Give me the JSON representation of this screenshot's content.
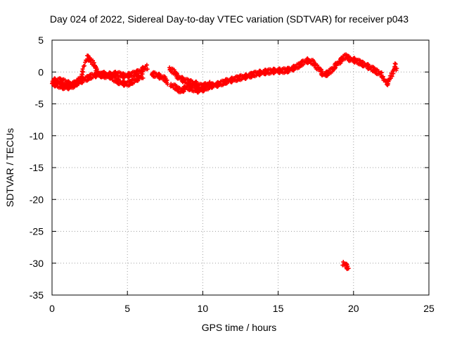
{
  "chart_data": {
    "type": "scatter",
    "title": "Day 024 of 2022, Sidereal Day-to-day VTEC variation (SDTVAR) for receiver p043",
    "xlabel": "GPS time / hours",
    "ylabel": "SDTVAR / TECUs",
    "xlim": [
      0,
      25
    ],
    "ylim": [
      -35,
      5
    ],
    "xticks": [
      0,
      5,
      10,
      15,
      20,
      25
    ],
    "yticks": [
      5,
      0,
      -5,
      -10,
      -15,
      -20,
      -25,
      -30,
      -35
    ],
    "grid": true,
    "series": [
      {
        "name": "SDTVAR",
        "color": "#ff0000",
        "marker": "plus",
        "segments": [
          [
            [
              0.0,
              -1.8
            ],
            [
              0.3,
              -2.0
            ],
            [
              0.6,
              -2.2
            ],
            [
              0.9,
              -2.4
            ],
            [
              1.2,
              -2.3
            ],
            [
              1.5,
              -2.0
            ],
            [
              1.8,
              -1.6
            ],
            [
              2.1,
              -1.2
            ],
            [
              2.4,
              -0.9
            ],
            [
              2.7,
              -0.6
            ],
            [
              3.0,
              -0.4
            ],
            [
              3.3,
              -0.5
            ],
            [
              3.6,
              -0.6
            ],
            [
              3.9,
              -0.4
            ],
            [
              4.2,
              -0.3
            ],
            [
              4.5,
              -0.4
            ],
            [
              4.8,
              -0.6
            ],
            [
              5.1,
              -0.5
            ],
            [
              5.4,
              -0.3
            ],
            [
              5.7,
              -0.1
            ],
            [
              6.0,
              0.4
            ],
            [
              6.3,
              0.8
            ]
          ],
          [
            [
              0.0,
              -1.4
            ],
            [
              0.4,
              -1.3
            ],
            [
              0.8,
              -1.5
            ],
            [
              1.2,
              -1.9
            ],
            [
              1.6,
              -1.8
            ],
            [
              1.9,
              -0.9
            ],
            [
              2.1,
              0.3
            ],
            [
              2.2,
              1.5
            ],
            [
              2.3,
              2.3
            ],
            [
              2.6,
              1.8
            ],
            [
              2.9,
              0.6
            ],
            [
              3.1,
              -0.2
            ]
          ],
          [
            [
              3.3,
              -0.2
            ],
            [
              3.7,
              -0.5
            ],
            [
              4.1,
              -1.1
            ],
            [
              4.5,
              -1.6
            ],
            [
              4.9,
              -1.9
            ],
            [
              5.3,
              -1.6
            ],
            [
              5.7,
              -1.0
            ],
            [
              6.0,
              -0.6
            ]
          ],
          [
            [
              6.6,
              -0.3
            ],
            [
              7.0,
              -0.5
            ],
            [
              7.4,
              -1.0
            ],
            [
              7.7,
              -1.6
            ]
          ],
          [
            [
              7.8,
              0.5
            ],
            [
              8.1,
              0.0
            ],
            [
              8.4,
              -0.8
            ],
            [
              8.7,
              -1.3
            ],
            [
              9.0,
              -1.5
            ],
            [
              9.3,
              -1.7
            ],
            [
              9.6,
              -1.9
            ],
            [
              9.9,
              -2.3
            ],
            [
              10.2,
              -2.1
            ],
            [
              10.5,
              -1.9
            ]
          ],
          [
            [
              7.9,
              -2.0
            ],
            [
              8.3,
              -2.6
            ],
            [
              8.6,
              -3.0
            ],
            [
              8.9,
              -2.4
            ],
            [
              9.3,
              -2.6
            ],
            [
              9.7,
              -2.9
            ],
            [
              10.1,
              -2.6
            ],
            [
              10.5,
              -2.2
            ],
            [
              10.9,
              -2.0
            ],
            [
              11.3,
              -1.7
            ],
            [
              11.7,
              -1.4
            ],
            [
              12.1,
              -1.1
            ],
            [
              12.5,
              -0.9
            ],
            [
              12.9,
              -0.7
            ],
            [
              13.3,
              -0.4
            ],
            [
              13.7,
              -0.2
            ],
            [
              14.1,
              0.0
            ],
            [
              14.5,
              0.1
            ],
            [
              14.9,
              0.2
            ],
            [
              15.3,
              0.2
            ],
            [
              15.7,
              0.3
            ],
            [
              16.1,
              0.7
            ],
            [
              16.5,
              1.2
            ],
            [
              16.9,
              1.8
            ],
            [
              17.3,
              1.5
            ],
            [
              17.7,
              0.5
            ],
            [
              18.0,
              -0.4
            ],
            [
              18.3,
              -0.2
            ],
            [
              18.6,
              0.4
            ],
            [
              18.9,
              1.2
            ],
            [
              19.2,
              2.0
            ],
            [
              19.5,
              2.5
            ],
            [
              19.8,
              2.0
            ],
            [
              20.1,
              1.8
            ],
            [
              20.4,
              1.5
            ],
            [
              20.7,
              1.2
            ],
            [
              21.0,
              0.8
            ],
            [
              21.3,
              0.4
            ],
            [
              21.6,
              0.0
            ],
            [
              21.9,
              -0.5
            ]
          ],
          [
            [
              22.0,
              -1.0
            ],
            [
              22.2,
              -1.8
            ],
            [
              22.4,
              -1.2
            ],
            [
              22.6,
              0.0
            ],
            [
              22.8,
              1.2
            ],
            [
              22.9,
              0.3
            ]
          ],
          [
            [
              19.3,
              -30.0
            ],
            [
              19.5,
              -30.4
            ],
            [
              19.7,
              -30.8
            ]
          ]
        ]
      }
    ]
  }
}
